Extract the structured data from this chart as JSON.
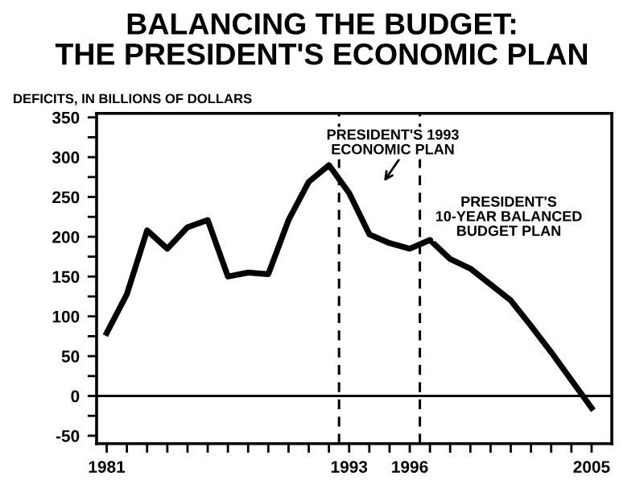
{
  "chart_data": {
    "type": "line",
    "title": "BALANCING THE BUDGET:\nTHE PRESIDENT'S ECONOMIC PLAN",
    "ylabel": "DEFICITS, IN BILLIONS OF DOLLARS",
    "x": [
      1981,
      1982,
      1983,
      1984,
      1985,
      1986,
      1987,
      1988,
      1989,
      1990,
      1991,
      1992,
      1993,
      1994,
      1995,
      1996,
      1997,
      1998,
      1999,
      2000,
      2001,
      2002,
      2003,
      2004,
      2005
    ],
    "series": [
      {
        "color": "#000000",
        "values": [
          79,
          128,
          208,
          185,
          212,
          221,
          150,
          155,
          153,
          221,
          269,
          290,
          255,
          203,
          192,
          185,
          196,
          172,
          160,
          140,
          120,
          88,
          55,
          20,
          -15
        ]
      }
    ],
    "xlim": [
      1980.5,
      2006
    ],
    "ylim": [
      -60,
      355
    ],
    "xticks": [
      1981,
      {
        "value": 1982,
        "label": null
      },
      {
        "value": 1983,
        "label": null
      },
      {
        "value": 1984,
        "label": null
      },
      {
        "value": 1985,
        "label": null
      },
      {
        "value": 1986,
        "label": null
      },
      {
        "value": 1987,
        "label": null
      },
      {
        "value": 1988,
        "label": null
      },
      {
        "value": 1989,
        "label": null
      },
      {
        "value": 1990,
        "label": null
      },
      {
        "value": 1991,
        "label": null
      },
      {
        "value": 1992,
        "label": null
      },
      1993,
      {
        "value": 1994,
        "label": null
      },
      {
        "value": 1995,
        "label": null
      },
      1996,
      {
        "value": 1997,
        "label": null
      },
      {
        "value": 1998,
        "label": null
      },
      {
        "value": 1999,
        "label": null
      },
      {
        "value": 2000,
        "label": null
      },
      {
        "value": 2001,
        "label": null
      },
      {
        "value": 2002,
        "label": null
      },
      {
        "value": 2003,
        "label": null
      },
      {
        "value": 2004,
        "label": null
      },
      2005
    ],
    "yticks": [
      -50,
      {
        "value": -25,
        "label": null
      },
      0,
      {
        "value": 25,
        "label": null
      },
      50,
      {
        "value": 75,
        "label": null
      },
      100,
      {
        "value": 125,
        "label": null
      },
      150,
      {
        "value": 175,
        "label": null
      },
      200,
      {
        "value": 225,
        "label": null
      },
      250,
      {
        "value": 275,
        "label": null
      },
      300,
      {
        "value": 325,
        "label": null
      },
      350
    ],
    "ref_lines": [
      {
        "axis": "y",
        "value": 0,
        "color": "#000000",
        "line_style": "solid"
      },
      {
        "axis": "x",
        "value": 1992.5,
        "color": "#000000",
        "line_style": "dashed"
      },
      {
        "axis": "x",
        "value": 1996.5,
        "color": "#000000",
        "line_style": "dashed"
      }
    ],
    "annotations": [
      "PRESIDENT'S 1993\nECONOMIC PLAN",
      "PRESIDENT'S\n10-YEAR BALANCED\nBUDGET PLAN"
    ],
    "grid": false,
    "legend": false,
    "marker": "none",
    "line_style": "solid"
  }
}
